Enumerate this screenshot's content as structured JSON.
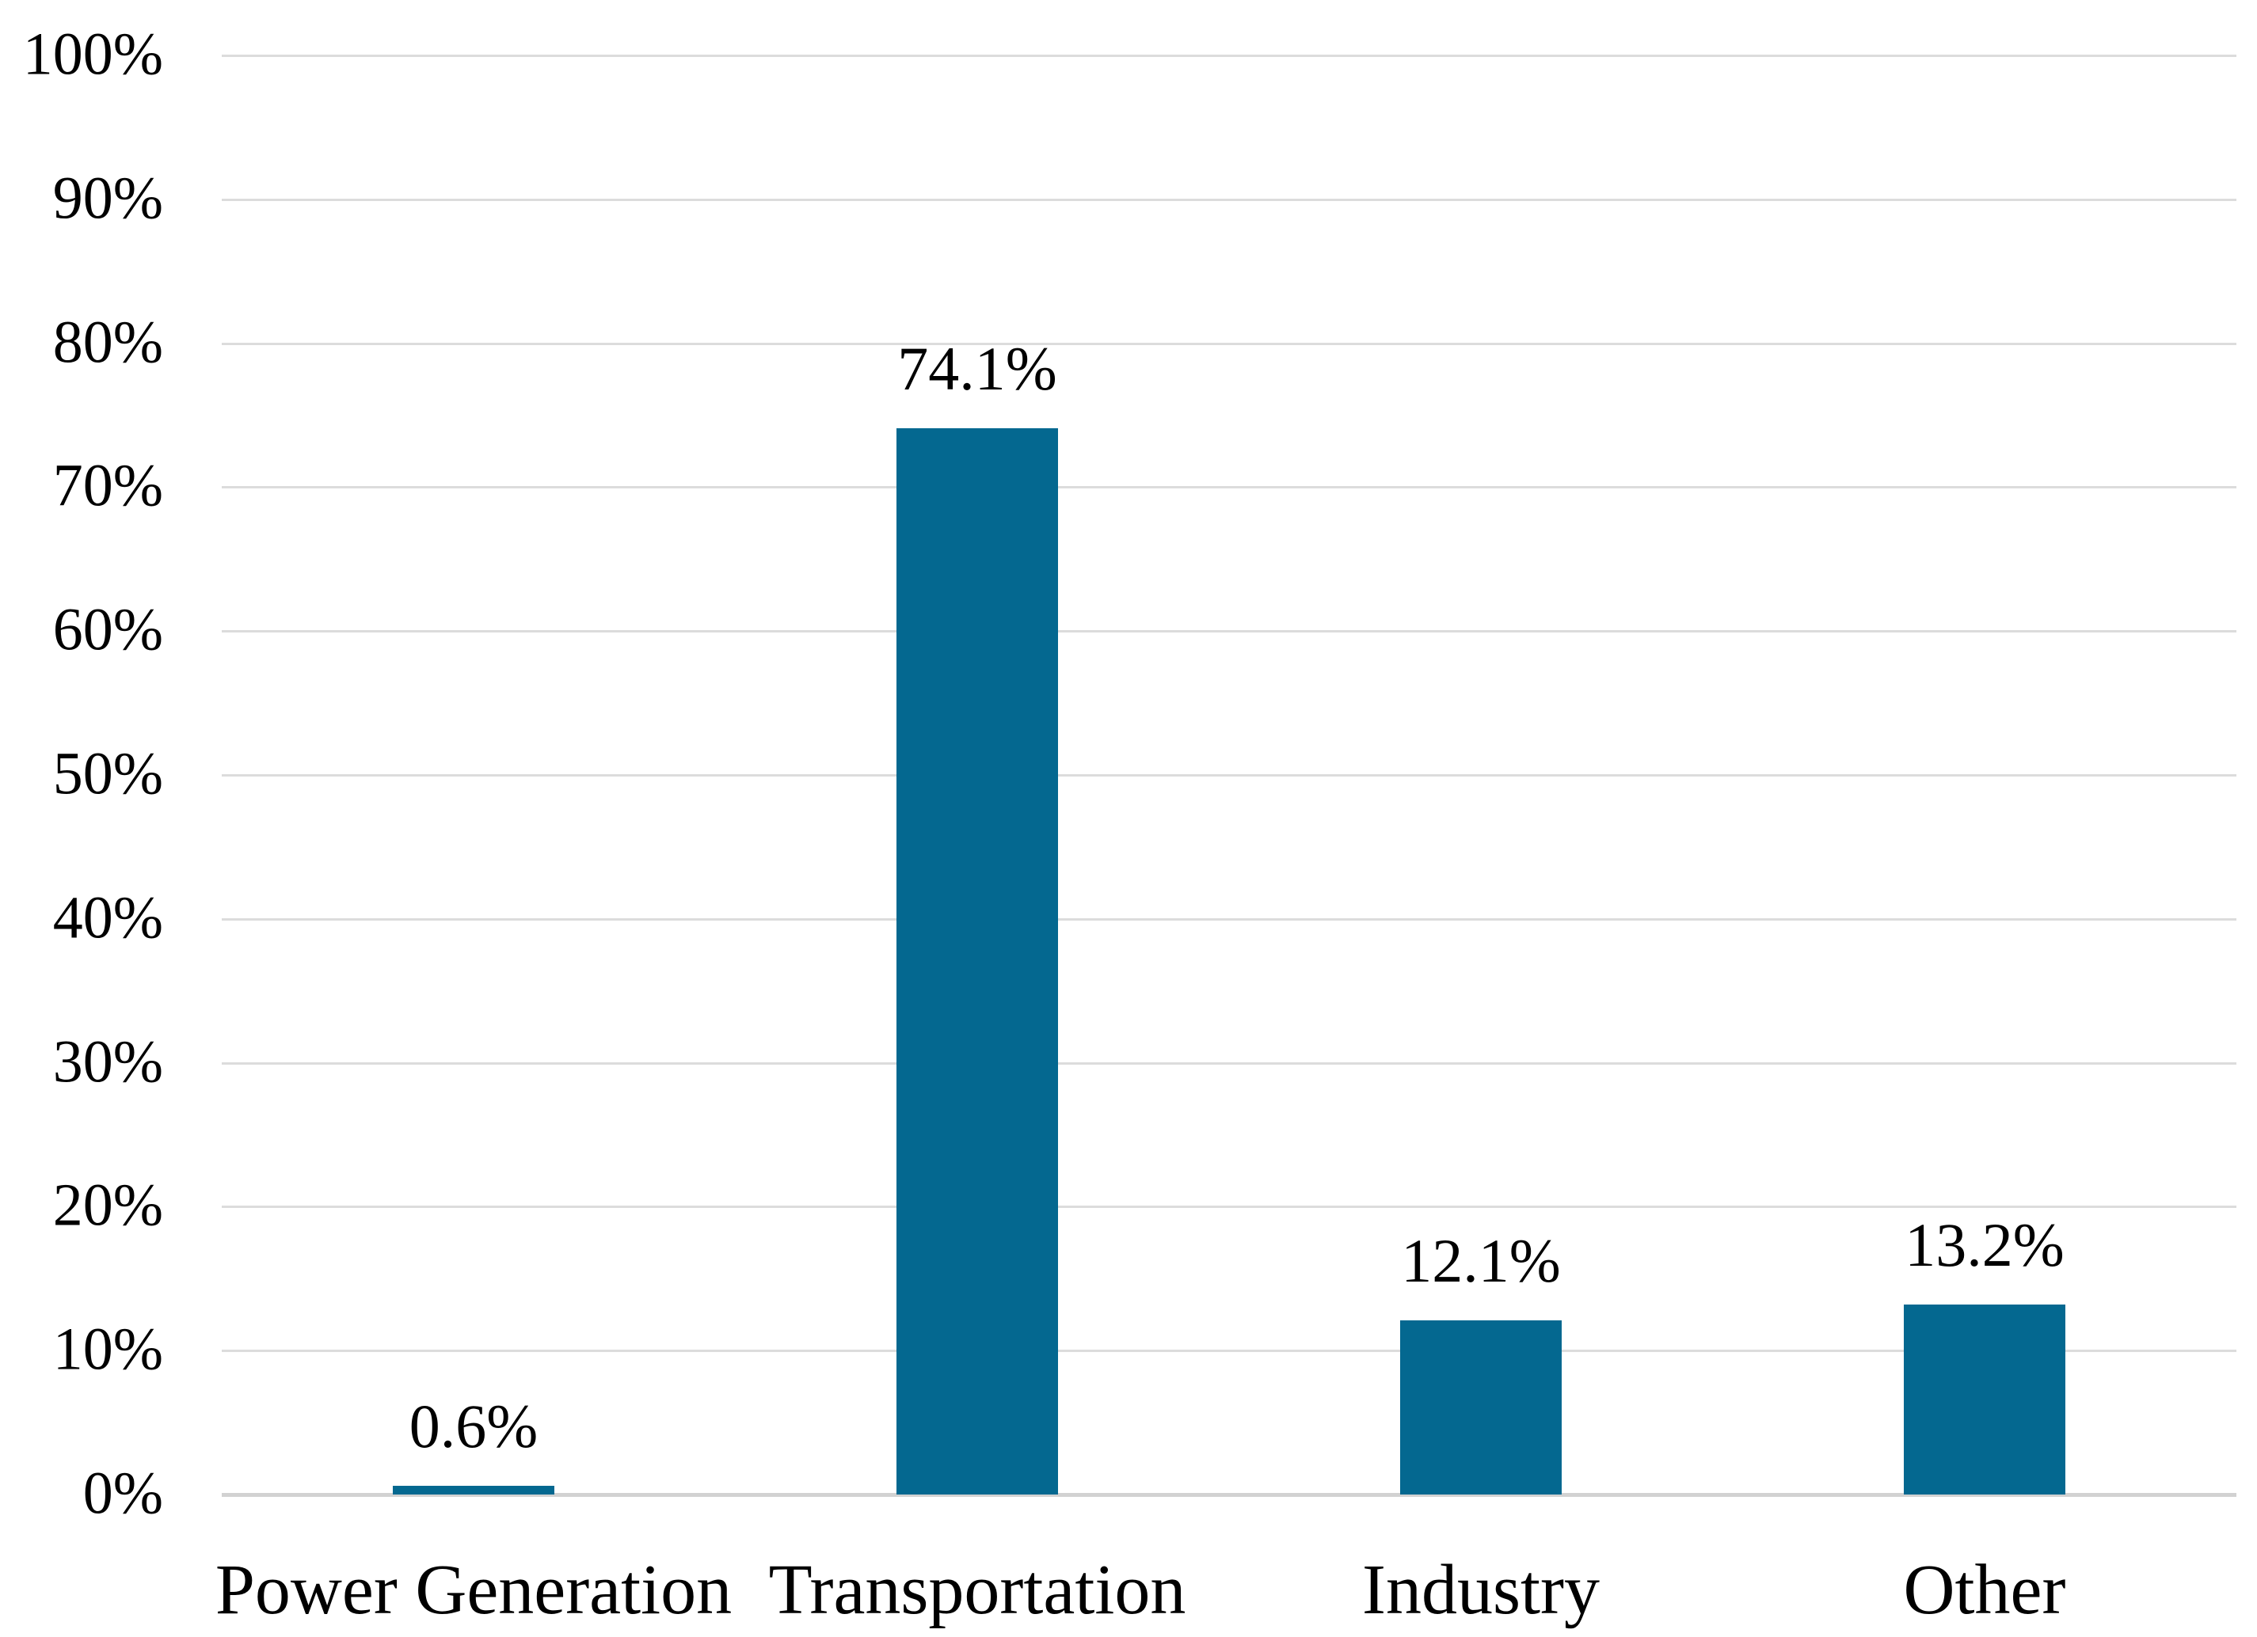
{
  "chart_data": {
    "type": "bar",
    "title": "",
    "categories": [
      "Power Generation",
      "Transportation",
      "Industry",
      "Other"
    ],
    "values": [
      0.6,
      74.1,
      12.1,
      13.2
    ],
    "value_labels": [
      "0.6%",
      "74.1%",
      "12.1%",
      "13.2%"
    ],
    "y_ticks": [
      0,
      10,
      20,
      30,
      40,
      50,
      60,
      70,
      80,
      90,
      100
    ],
    "y_tick_labels": [
      "0%",
      "10%",
      "20%",
      "30%",
      "40%",
      "50%",
      "60%",
      "70%",
      "80%",
      "90%",
      "100%"
    ],
    "ylim": [
      0,
      100
    ],
    "grid": true,
    "legend": false,
    "xlabel": "",
    "ylabel": "",
    "colors": {
      "bar": "#046890",
      "gridline": "#dcdcdc",
      "baseline": "#d2d2d2",
      "text": "#000000",
      "background": "#ffffff"
    }
  }
}
